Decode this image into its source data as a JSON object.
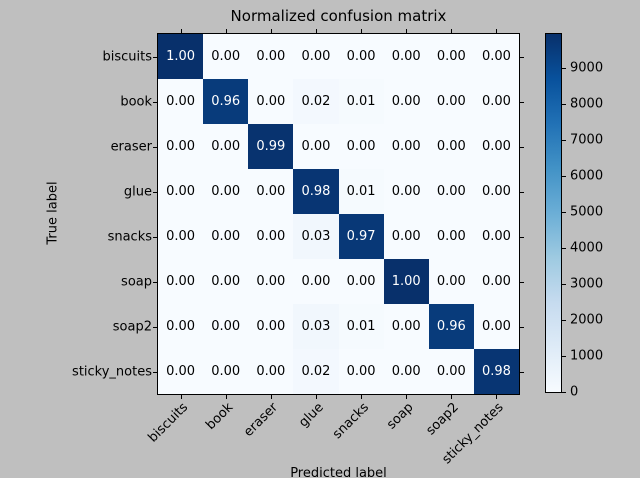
{
  "chart_data": {
    "type": "heatmap",
    "title": "Normalized confusion matrix",
    "xlabel": "Predicted label",
    "ylabel": "True label",
    "x_categories": [
      "biscuits",
      "book",
      "eraser",
      "glue",
      "snacks",
      "soap",
      "soap2",
      "sticky_notes"
    ],
    "y_categories": [
      "biscuits",
      "book",
      "eraser",
      "glue",
      "snacks",
      "soap",
      "soap2",
      "sticky_notes"
    ],
    "matrix": [
      [
        1.0,
        0.0,
        0.0,
        0.0,
        0.0,
        0.0,
        0.0,
        0.0
      ],
      [
        0.0,
        0.96,
        0.0,
        0.02,
        0.01,
        0.0,
        0.0,
        0.0
      ],
      [
        0.0,
        0.0,
        0.99,
        0.0,
        0.0,
        0.0,
        0.0,
        0.0
      ],
      [
        0.0,
        0.0,
        0.0,
        0.98,
        0.01,
        0.0,
        0.0,
        0.0
      ],
      [
        0.0,
        0.0,
        0.0,
        0.03,
        0.97,
        0.0,
        0.0,
        0.0
      ],
      [
        0.0,
        0.0,
        0.0,
        0.0,
        0.0,
        1.0,
        0.0,
        0.0
      ],
      [
        0.0,
        0.0,
        0.0,
        0.03,
        0.01,
        0.0,
        0.96,
        0.0
      ],
      [
        0.0,
        0.0,
        0.0,
        0.02,
        0.0,
        0.0,
        0.0,
        0.98
      ]
    ],
    "value_format_decimals": 2,
    "colormap": "Blues",
    "colormap_stops": [
      "#f7fbff",
      "#deebf7",
      "#c6dbef",
      "#9ecae1",
      "#6baed6",
      "#4292c6",
      "#2171b5",
      "#08519c",
      "#08306b"
    ],
    "cell_text_threshold": 0.5,
    "cell_text_color_high": "#ffffff",
    "cell_text_color_low": "#000000",
    "colorbar": {
      "position": "right",
      "tick_labels": [
        "0",
        "1000",
        "2000",
        "3000",
        "4000",
        "5000",
        "6000",
        "7000",
        "8000",
        "9000"
      ],
      "tick_values": [
        0,
        1000,
        2000,
        3000,
        4000,
        5000,
        6000,
        7000,
        8000,
        9000
      ],
      "vmin": 0,
      "vmax": 9940
    },
    "grid": false,
    "legend": false,
    "figure_background": "#bfbfbf",
    "axes_background": "#f7fbff",
    "axis_color": "#000000"
  }
}
